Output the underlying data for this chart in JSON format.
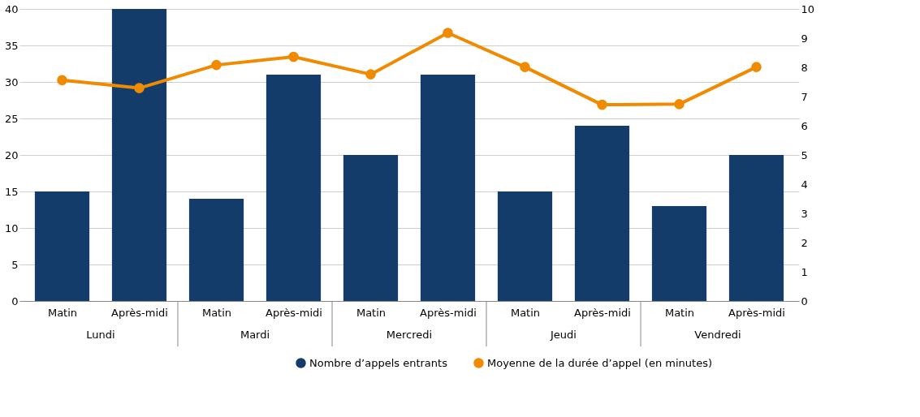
{
  "chart_data": {
    "type": "bar",
    "categories": [
      "Matin",
      "Après-midi",
      "Matin",
      "Après-midi",
      "Matin",
      "Après-midi",
      "Matin",
      "Après-midi",
      "Matin",
      "Après-midi"
    ],
    "annotations": [
      "Lundi",
      "Mardi",
      "Mercredi",
      "Jeudi",
      "Vendredi"
    ],
    "series": [
      {
        "name": "Nombre d’appels entrants",
        "color": "#143c6a",
        "values": [
          15,
          40,
          14,
          31,
          20,
          31,
          15,
          24,
          13,
          20
        ]
      },
      {
        "name": "Moyenne de la durée d’appel (en minutes)",
        "type": "line",
        "axis": "y2",
        "color": "#f08a00",
        "marker": "circle",
        "line_style": "solid",
        "values": [
          7.56,
          7.29,
          8.08,
          8.36,
          7.76,
          9.18,
          8.01,
          6.72,
          6.74,
          8.01
        ]
      }
    ],
    "ylim": [
      0,
      40
    ],
    "yticks": [
      0,
      5,
      10,
      15,
      20,
      25,
      30,
      35,
      40
    ],
    "y2lim": [
      0,
      10
    ],
    "y2ticks": [
      0,
      1,
      2,
      3,
      4,
      5,
      6,
      7,
      8,
      9,
      10
    ],
    "grid": "y",
    "legend": "bottom right"
  }
}
